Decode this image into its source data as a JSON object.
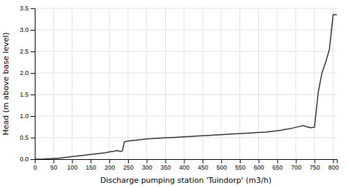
{
  "chart_data": {
    "type": "line",
    "x": [
      0,
      10,
      20,
      30,
      40,
      50,
      60,
      70,
      80,
      90,
      100,
      110,
      120,
      130,
      140,
      150,
      160,
      170,
      180,
      190,
      200,
      210,
      215,
      220,
      225,
      230,
      235,
      240,
      245,
      250,
      260,
      270,
      280,
      290,
      300,
      320,
      340,
      360,
      380,
      400,
      420,
      440,
      460,
      480,
      500,
      520,
      540,
      560,
      580,
      600,
      620,
      640,
      650,
      660,
      665,
      670,
      680,
      690,
      700,
      710,
      720,
      730,
      740,
      750,
      760,
      770,
      780,
      790,
      800,
      810
    ],
    "values": [
      0.0,
      0.0,
      0.0,
      0.01,
      0.01,
      0.02,
      0.02,
      0.03,
      0.04,
      0.05,
      0.06,
      0.07,
      0.08,
      0.09,
      0.1,
      0.11,
      0.12,
      0.13,
      0.14,
      0.15,
      0.17,
      0.18,
      0.19,
      0.2,
      0.19,
      0.18,
      0.19,
      0.4,
      0.41,
      0.42,
      0.43,
      0.44,
      0.45,
      0.46,
      0.47,
      0.48,
      0.49,
      0.5,
      0.51,
      0.52,
      0.53,
      0.54,
      0.55,
      0.56,
      0.57,
      0.58,
      0.59,
      0.6,
      0.61,
      0.62,
      0.63,
      0.65,
      0.66,
      0.67,
      0.68,
      0.69,
      0.7,
      0.72,
      0.74,
      0.76,
      0.78,
      0.75,
      0.73,
      0.74,
      1.55,
      2.0,
      2.25,
      2.55,
      3.35,
      3.35
    ],
    "xlim": [
      0,
      810
    ],
    "ylim": [
      0,
      3.5
    ],
    "xticks": [
      0,
      50,
      100,
      150,
      200,
      250,
      300,
      350,
      400,
      450,
      500,
      550,
      600,
      650,
      700,
      750,
      800
    ],
    "yticks": [
      {
        "value": 0,
        "label": "0.0"
      },
      0.5,
      {
        "value": 1,
        "label": "1.0"
      },
      1.5,
      {
        "value": 2,
        "label": "2.0"
      },
      2.5,
      {
        "value": 3,
        "label": "3.0"
      },
      3.5
    ],
    "xlabel": "Discharge pumping station 'Tuindorp' (m3/h)",
    "ylabel": "Head (m above base level)",
    "color": "#2d2d2d",
    "grid": true
  }
}
